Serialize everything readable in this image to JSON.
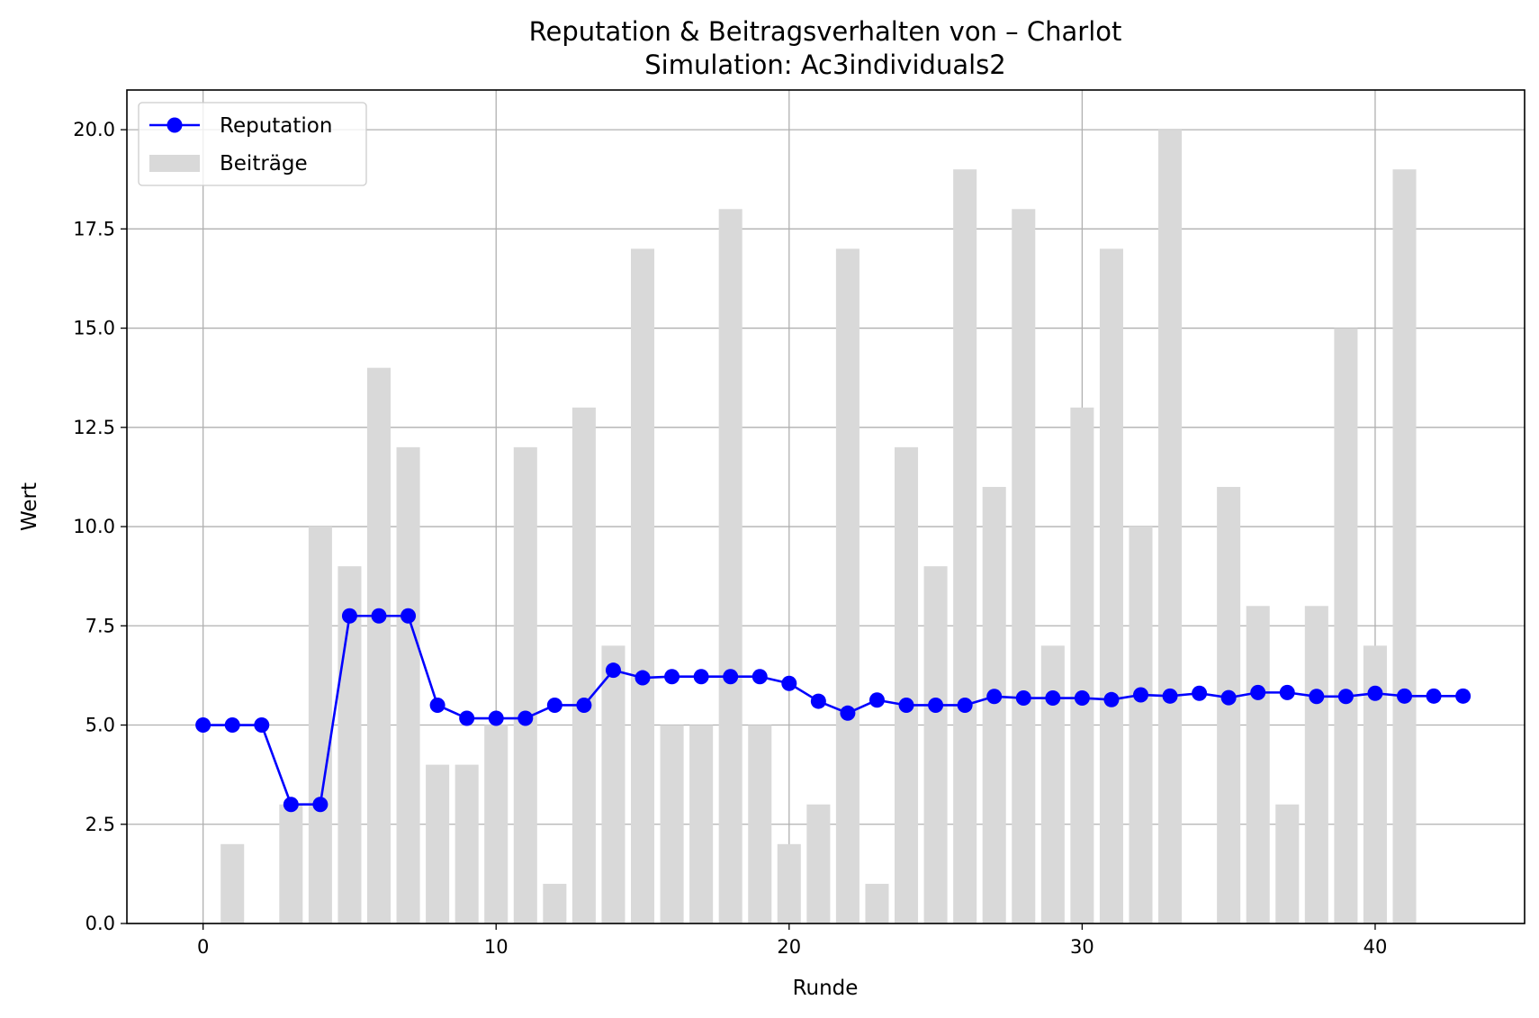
{
  "chart_data": {
    "type": "bar+line",
    "title": "Reputation & Beitragsverhalten von – Charlot",
    "subtitle": "Simulation: Ac3individuals2",
    "xlabel": "Runde",
    "ylabel": "Wert",
    "xlim": [
      -2.6,
      45.1
    ],
    "ylim": [
      0,
      21
    ],
    "xticks": [
      0,
      10,
      20,
      30,
      40
    ],
    "yticks": [
      0,
      2.5,
      5,
      7.5,
      10,
      12.5,
      15,
      17.5,
      20
    ],
    "ytick_labels": [
      "0.0",
      "2.5",
      "5.0",
      "7.5",
      "10.0",
      "12.5",
      "15.0",
      "17.5",
      "20.0"
    ],
    "grid": true,
    "legend_position": "top-left",
    "x": [
      0,
      1,
      2,
      3,
      4,
      5,
      6,
      7,
      8,
      9,
      10,
      11,
      12,
      13,
      14,
      15,
      16,
      17,
      18,
      19,
      20,
      21,
      22,
      23,
      24,
      25,
      26,
      27,
      28,
      29,
      30,
      31,
      32,
      33,
      34,
      35,
      36,
      37,
      38,
      39,
      40,
      41,
      42,
      43
    ],
    "series": [
      {
        "name": "Reputation",
        "type": "line",
        "color": "#0000ff",
        "values": [
          5.0,
          5.0,
          5.0,
          3.0,
          3.0,
          7.75,
          7.75,
          7.75,
          5.5,
          5.17,
          5.17,
          5.17,
          5.5,
          5.5,
          6.38,
          6.19,
          6.22,
          6.22,
          6.22,
          6.22,
          6.05,
          5.6,
          5.3,
          5.63,
          5.5,
          5.5,
          5.5,
          5.72,
          5.68,
          5.68,
          5.68,
          5.64,
          5.76,
          5.73,
          5.8,
          5.69,
          5.82,
          5.82,
          5.72,
          5.72,
          5.8,
          5.73,
          5.73,
          5.73
        ]
      },
      {
        "name": "Beiträge",
        "type": "bar",
        "color": "#d9d9d9",
        "values": [
          0,
          2,
          0,
          3,
          10,
          9,
          14,
          12,
          4,
          4,
          5,
          12,
          1,
          13,
          7,
          17,
          5,
          5,
          18,
          5,
          2,
          3,
          17,
          1,
          12,
          9,
          19,
          11,
          18,
          7,
          13,
          17,
          10,
          20,
          0,
          11,
          8,
          3,
          8,
          15,
          7,
          19,
          0,
          0
        ]
      }
    ]
  }
}
